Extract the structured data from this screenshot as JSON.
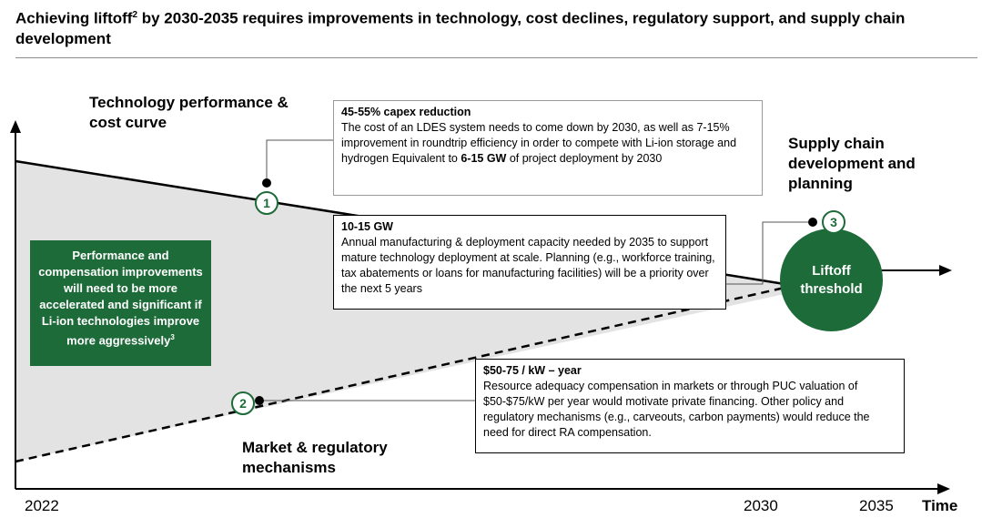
{
  "title": {
    "part1": "Achieving liftoff",
    "sup": "2",
    "part2": " by 2030-2035 requires improvements in technology, cost declines, regulatory support, and supply chain development"
  },
  "headings": {
    "tech": "Technology performance & cost curve",
    "supply": "Supply chain development and planning",
    "market": "Market & regulatory mechanisms"
  },
  "box1": {
    "title": "45-55% capex reduction",
    "body_pre": "The cost of an LDES system needs to come down by 2030, as well as 7-15% improvement in roundtrip efficiency in order to compete with Li-ion storage and hydrogen Equivalent to ",
    "body_bold": "6-15 GW",
    "body_post": " of project deployment by 2030"
  },
  "box2": {
    "title": "10-15 GW",
    "body": "Annual manufacturing & deployment capacity needed by 2035 to support mature technology deployment at scale. Planning (e.g., workforce training, tax abatements or loans for manufacturing facilities) will be a priority over the next 5 years"
  },
  "box3": {
    "title": "$50-75 / kW – year",
    "body": "Resource adequacy compensation in markets or through PUC valuation of $50-$75/kW per year would motivate private financing. Other policy and regulatory mechanisms (e.g., carveouts, carbon payments) would reduce the need for direct RA compensation."
  },
  "green_note": {
    "text": "Performance and compensation improvements will need to be more accelerated and significant if Li-ion technologies improve more aggressively",
    "sup": "3"
  },
  "liftoff_label": "Liftoff threshold",
  "markers": [
    "1",
    "2",
    "3"
  ],
  "axis": {
    "year_start": "2022",
    "year_mid": "2030",
    "year_end": "2035",
    "time_label": "Time"
  },
  "colors": {
    "green": "#1e6b3a",
    "fill_gray": "#e3e3e3"
  }
}
